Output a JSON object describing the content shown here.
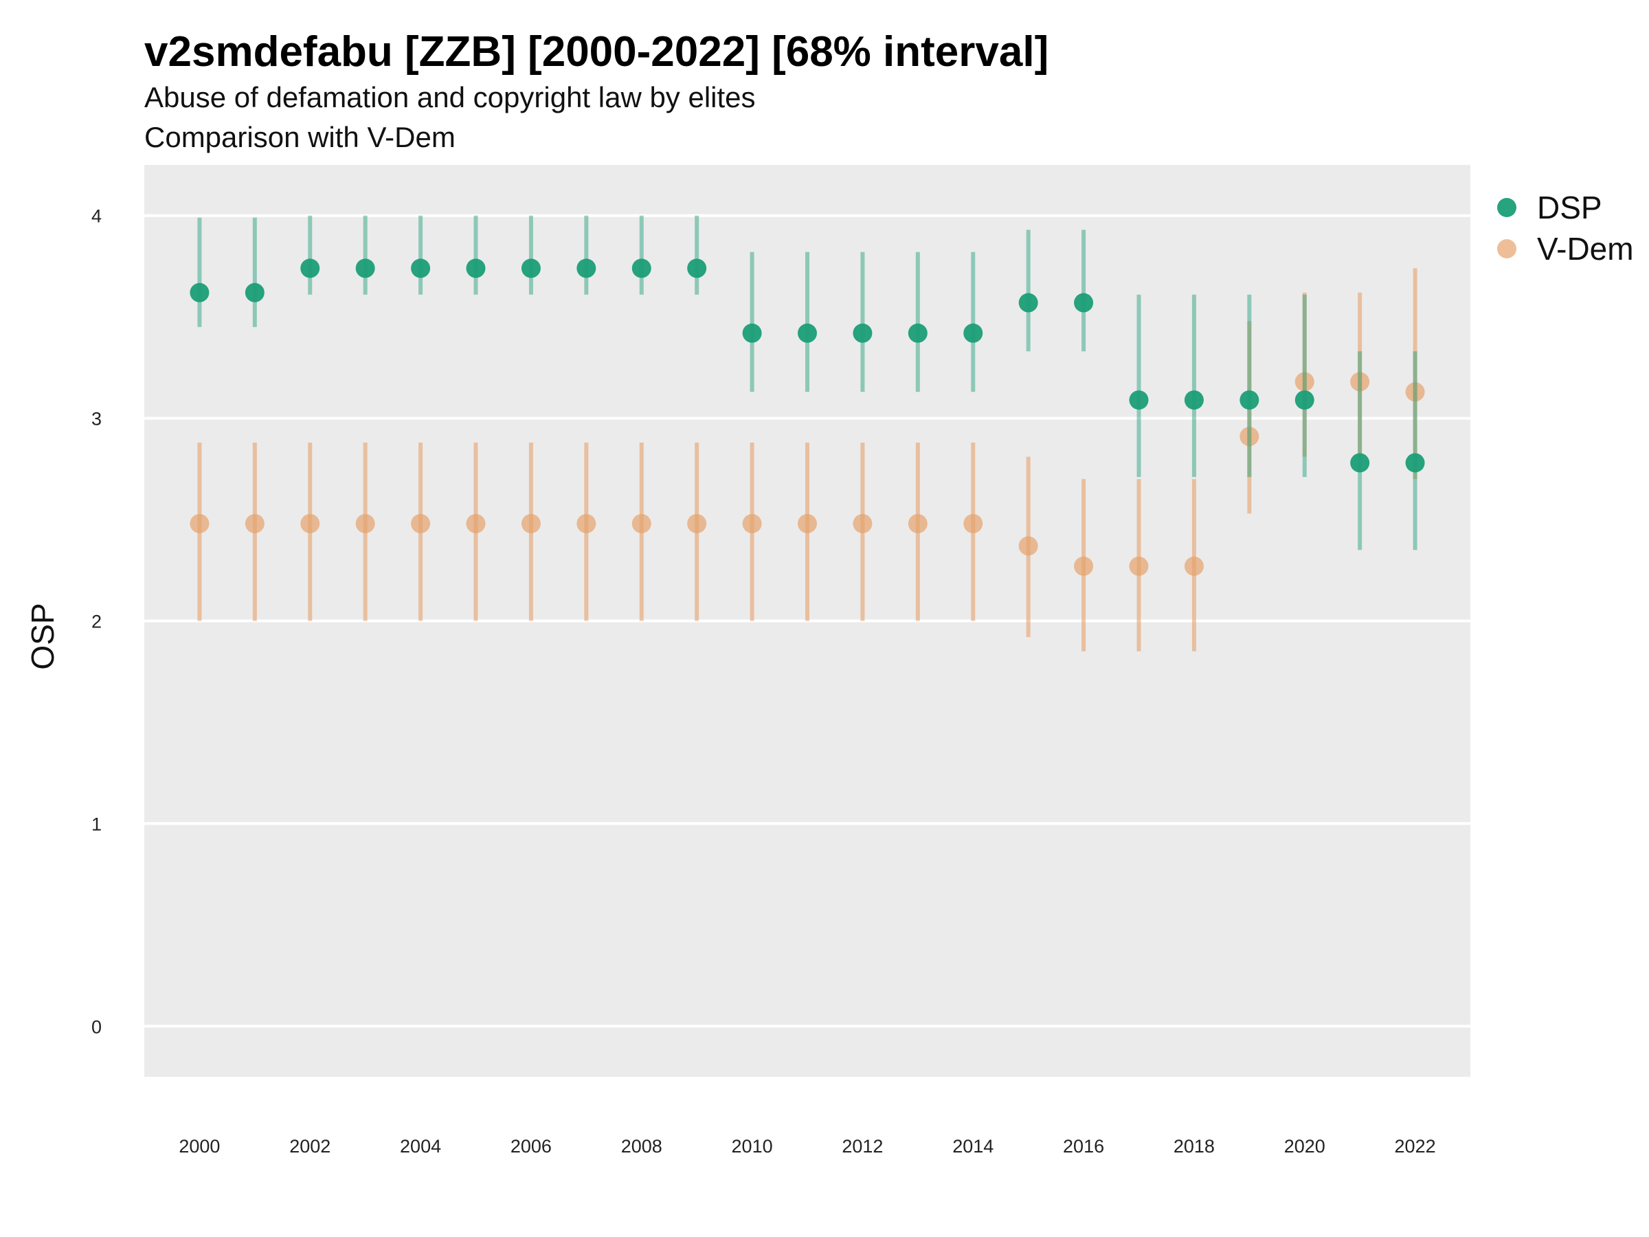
{
  "chart_data": {
    "type": "scatter",
    "title": "v2smdefabu [ZZB] [2000-2022] [68% interval]",
    "subtitle": "Abuse of defamation and copyright law by elites",
    "subtitle2": "Comparison with V-Dem",
    "xlabel": "",
    "ylabel": "OSP",
    "xlim": [
      1999.0,
      2023.0
    ],
    "ylim": [
      -0.25,
      4.25
    ],
    "x_ticks": [
      2000,
      2002,
      2004,
      2006,
      2008,
      2010,
      2012,
      2014,
      2016,
      2018,
      2020,
      2022
    ],
    "y_ticks": [
      0,
      1,
      2,
      3,
      4
    ],
    "grid": true,
    "legend_position": "right",
    "x": [
      2000,
      2001,
      2002,
      2003,
      2004,
      2005,
      2006,
      2007,
      2008,
      2009,
      2010,
      2011,
      2012,
      2013,
      2014,
      2015,
      2016,
      2017,
      2018,
      2019,
      2020,
      2021,
      2022
    ],
    "series": [
      {
        "name": "DSP",
        "color": "#1b9e77",
        "values": [
          3.62,
          3.62,
          3.74,
          3.74,
          3.74,
          3.74,
          3.74,
          3.74,
          3.74,
          3.74,
          3.42,
          3.42,
          3.42,
          3.42,
          3.42,
          3.57,
          3.57,
          3.09,
          3.09,
          3.09,
          3.09,
          2.78,
          2.78
        ],
        "lower": [
          3.45,
          3.45,
          3.61,
          3.61,
          3.61,
          3.61,
          3.61,
          3.61,
          3.61,
          3.61,
          3.13,
          3.13,
          3.13,
          3.13,
          3.13,
          3.33,
          3.33,
          2.71,
          2.71,
          2.71,
          2.71,
          2.35,
          2.35
        ],
        "upper": [
          3.99,
          3.99,
          4.0,
          4.0,
          4.0,
          4.0,
          4.0,
          4.0,
          4.0,
          4.0,
          3.82,
          3.82,
          3.82,
          3.82,
          3.82,
          3.93,
          3.93,
          3.61,
          3.61,
          3.61,
          3.61,
          3.33,
          3.33
        ]
      },
      {
        "name": "V-Dem",
        "color": "#e6a26c",
        "values": [
          2.48,
          2.48,
          2.48,
          2.48,
          2.48,
          2.48,
          2.48,
          2.48,
          2.48,
          2.48,
          2.48,
          2.48,
          2.48,
          2.48,
          2.48,
          2.37,
          2.27,
          2.27,
          2.27,
          2.91,
          3.18,
          3.18,
          3.13
        ],
        "lower": [
          2.0,
          2.0,
          2.0,
          2.0,
          2.0,
          2.0,
          2.0,
          2.0,
          2.0,
          2.0,
          2.0,
          2.0,
          2.0,
          2.0,
          2.0,
          1.92,
          1.85,
          1.85,
          1.85,
          2.53,
          2.81,
          2.81,
          2.7
        ],
        "upper": [
          2.88,
          2.88,
          2.88,
          2.88,
          2.88,
          2.88,
          2.88,
          2.88,
          2.88,
          2.88,
          2.88,
          2.88,
          2.88,
          2.88,
          2.88,
          2.81,
          2.7,
          2.7,
          2.7,
          3.48,
          3.62,
          3.62,
          3.74
        ]
      }
    ]
  }
}
